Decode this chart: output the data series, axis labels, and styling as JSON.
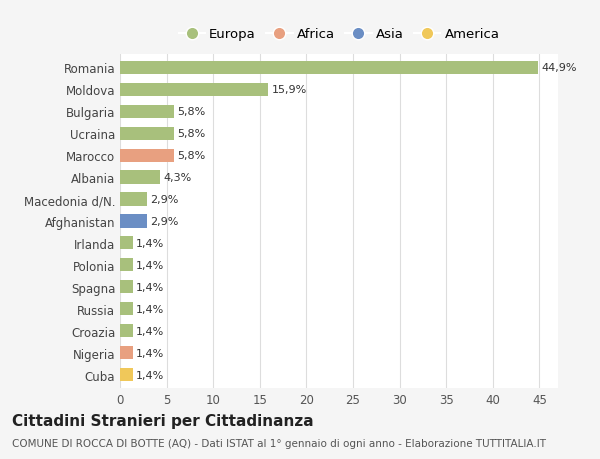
{
  "countries": [
    "Romania",
    "Moldova",
    "Bulgaria",
    "Ucraina",
    "Marocco",
    "Albania",
    "Macedonia d/N.",
    "Afghanistan",
    "Irlanda",
    "Polonia",
    "Spagna",
    "Russia",
    "Croazia",
    "Nigeria",
    "Cuba"
  ],
  "values": [
    44.9,
    15.9,
    5.8,
    5.8,
    5.8,
    4.3,
    2.9,
    2.9,
    1.4,
    1.4,
    1.4,
    1.4,
    1.4,
    1.4,
    1.4
  ],
  "labels": [
    "44,9%",
    "15,9%",
    "5,8%",
    "5,8%",
    "5,8%",
    "4,3%",
    "2,9%",
    "2,9%",
    "1,4%",
    "1,4%",
    "1,4%",
    "1,4%",
    "1,4%",
    "1,4%",
    "1,4%"
  ],
  "continents": [
    "Europa",
    "Europa",
    "Europa",
    "Europa",
    "Africa",
    "Europa",
    "Europa",
    "Asia",
    "Europa",
    "Europa",
    "Europa",
    "Europa",
    "Europa",
    "Africa",
    "America"
  ],
  "colors": {
    "Europa": "#a8c07c",
    "Africa": "#e8a080",
    "Asia": "#6b8ec4",
    "America": "#f0c85a"
  },
  "title": "Cittadini Stranieri per Cittadinanza",
  "subtitle": "COMUNE DI ROCCA DI BOTTE (AQ) - Dati ISTAT al 1° gennaio di ogni anno - Elaborazione TUTTITALIA.IT",
  "xlim": [
    0,
    47
  ],
  "xticks": [
    0,
    5,
    10,
    15,
    20,
    25,
    30,
    35,
    40,
    45
  ],
  "background_color": "#f5f5f5",
  "plot_background": "#ffffff",
  "grid_color": "#dddddd",
  "bar_height": 0.6,
  "title_fontsize": 11,
  "subtitle_fontsize": 7.5,
  "label_fontsize": 8,
  "tick_fontsize": 8.5,
  "legend_fontsize": 9.5,
  "legend_order": [
    "Europa",
    "Africa",
    "Asia",
    "America"
  ]
}
